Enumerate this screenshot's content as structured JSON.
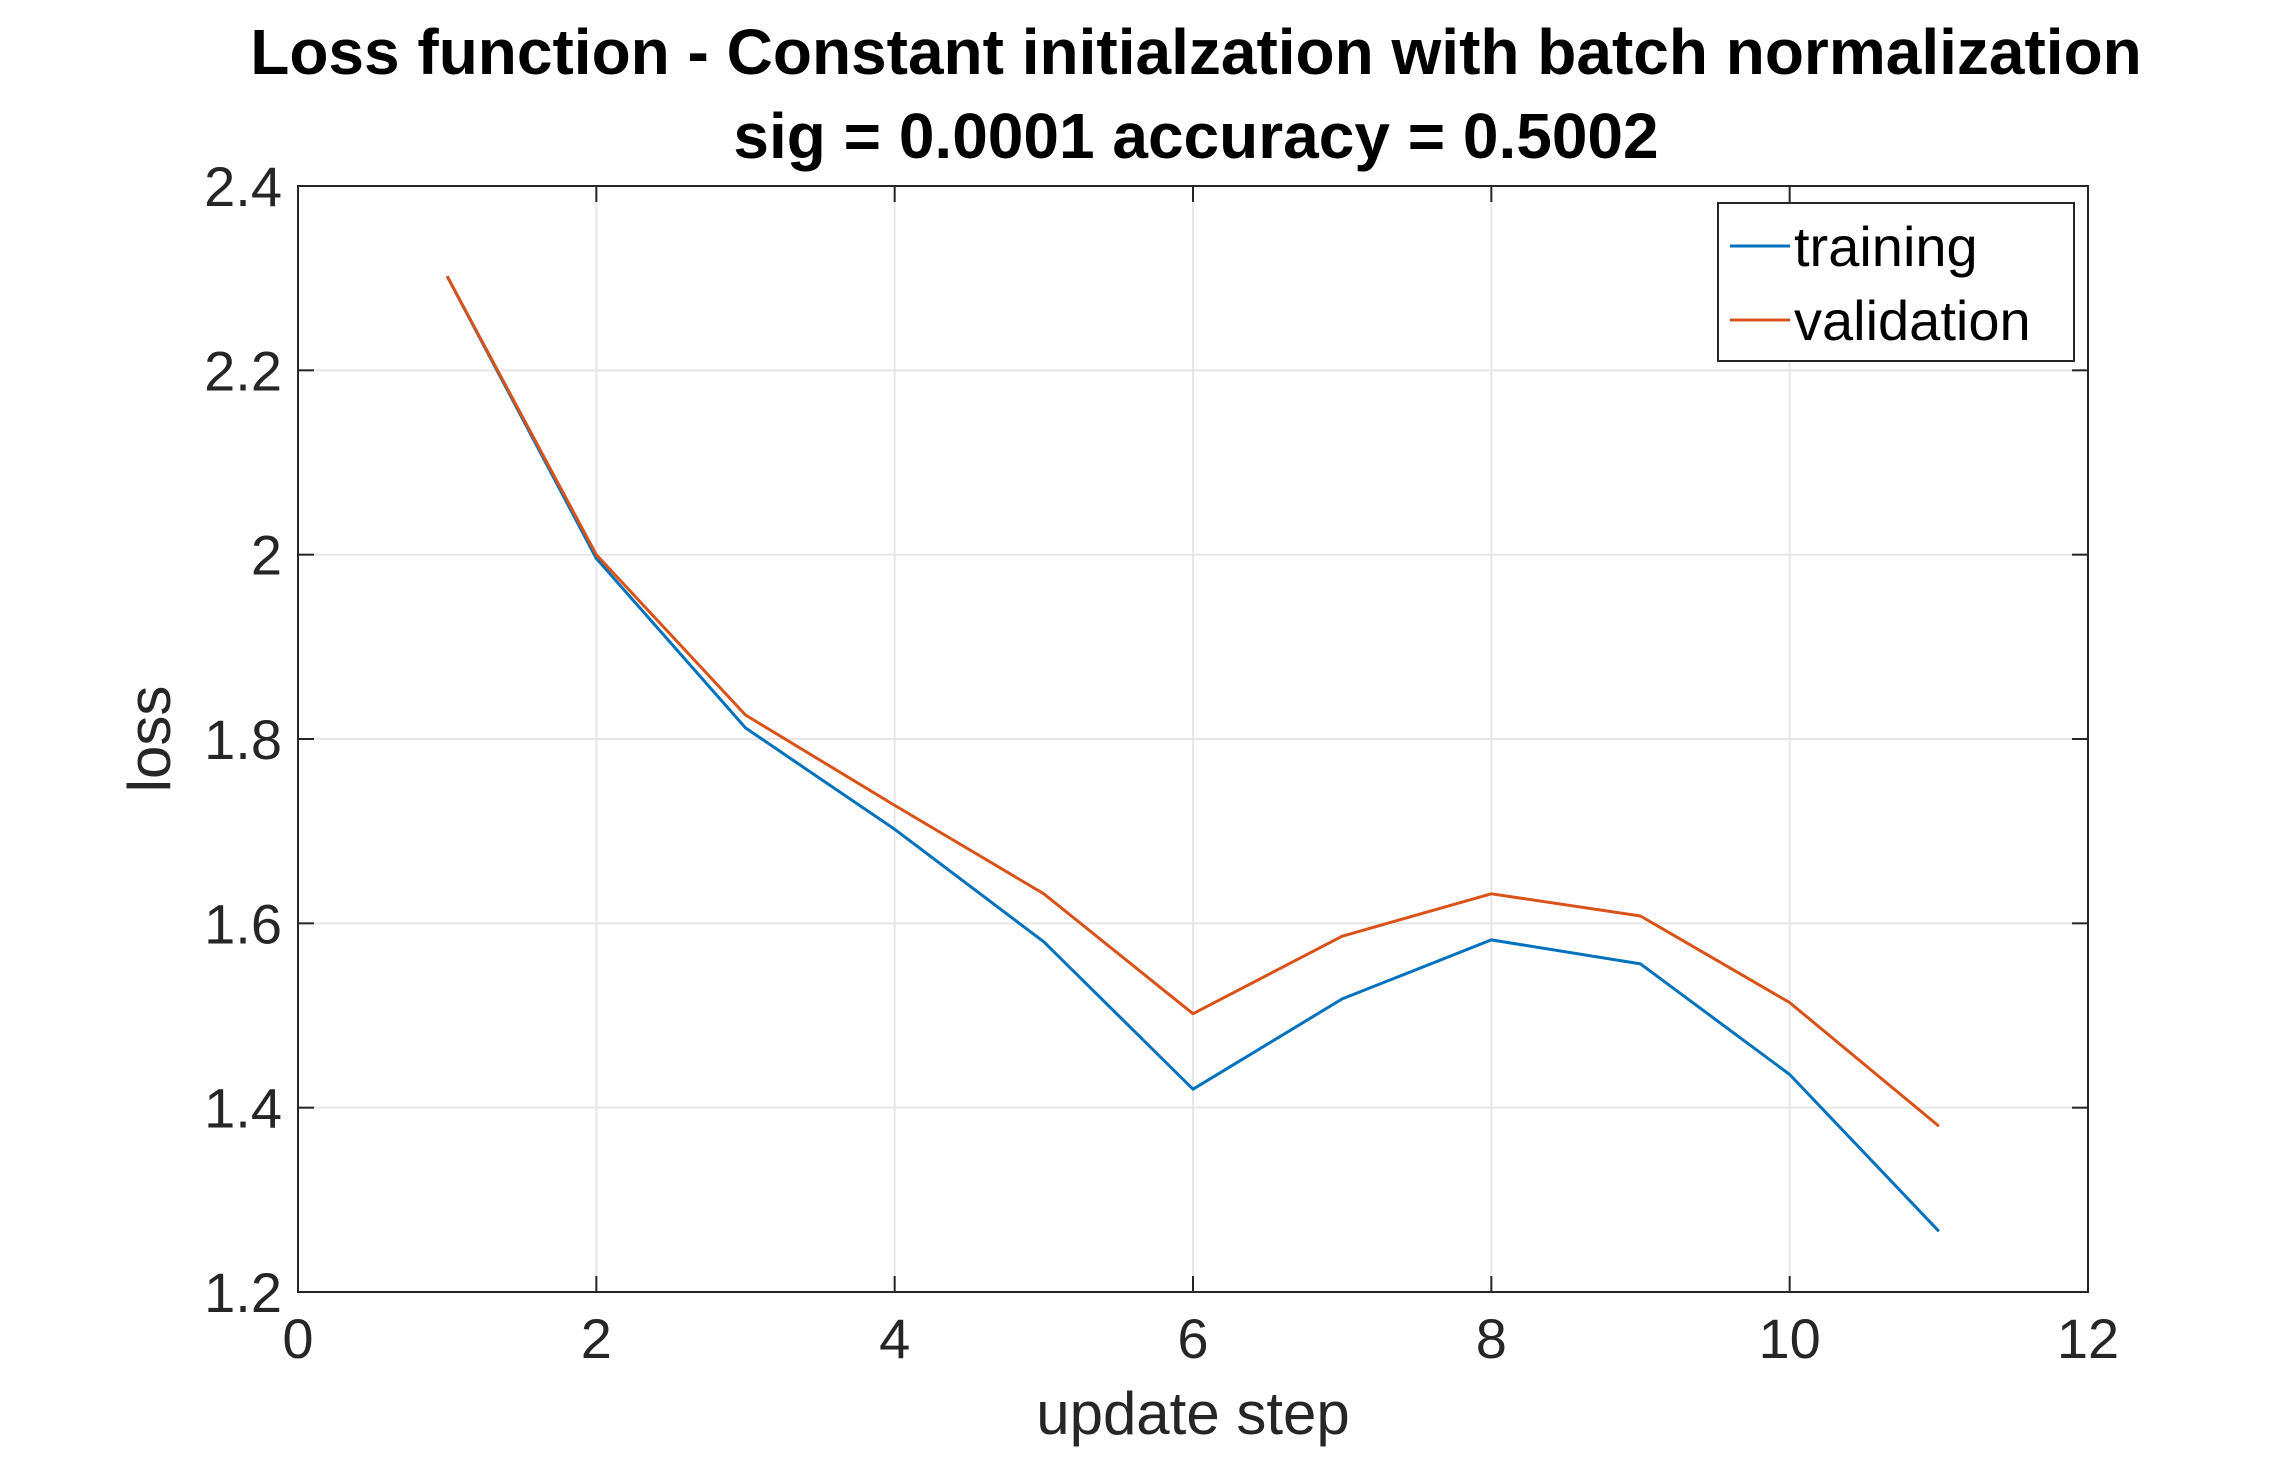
{
  "chart_data": {
    "type": "line",
    "title": "Loss function - Constant initialzation with batch normalization",
    "subtitle": "sig = 0.0001 accuracy = 0.5002",
    "xlabel": "update step",
    "ylabel": "loss",
    "xlim": [
      0,
      12
    ],
    "ylim": [
      1.2,
      2.4
    ],
    "xticks": [
      "0",
      "2",
      "4",
      "6",
      "8",
      "10",
      "12"
    ],
    "yticks": [
      "1.2",
      "1.4",
      "1.6",
      "1.8",
      "2",
      "2.2",
      "2.4"
    ],
    "grid": true,
    "legend_position": "top-right",
    "x": [
      1,
      2,
      3,
      4,
      5,
      6,
      7,
      8,
      9,
      10,
      11
    ],
    "series": [
      {
        "name": "training",
        "color": "#0072BD",
        "values": [
          2.302,
          1.996,
          1.812,
          1.702,
          1.58,
          1.42,
          1.518,
          1.582,
          1.556,
          1.436,
          1.266
        ]
      },
      {
        "name": "validation",
        "color": "#D95319",
        "values": [
          2.302,
          2.0,
          1.826,
          1.728,
          1.632,
          1.502,
          1.586,
          1.632,
          1.608,
          1.514,
          1.38
        ]
      }
    ]
  }
}
